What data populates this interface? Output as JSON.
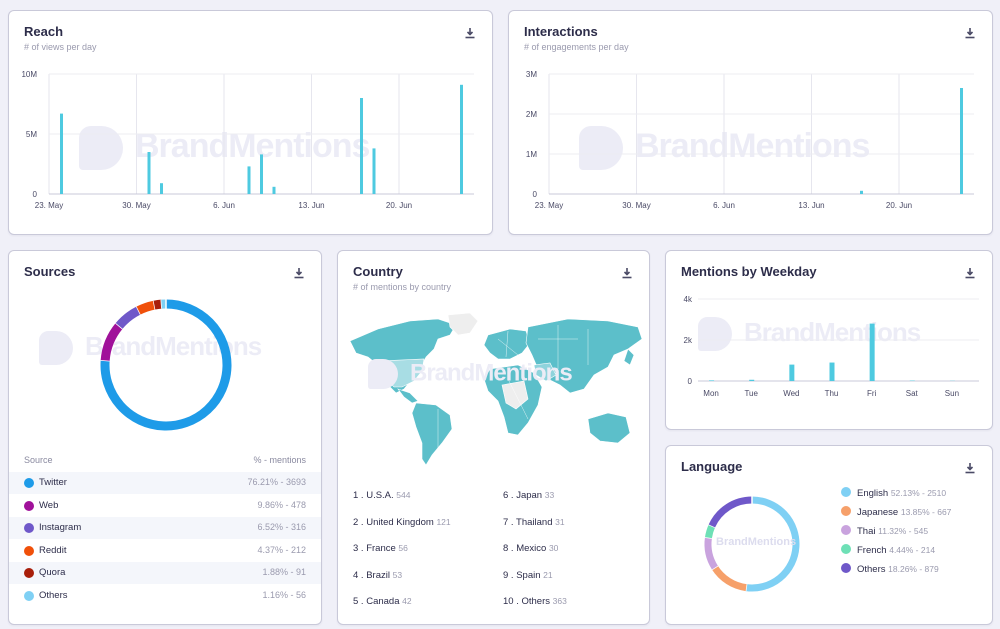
{
  "reach": {
    "title": "Reach",
    "subtitle": "# of views per day",
    "chart_data": {
      "type": "bar",
      "title": "Reach",
      "ylabel": "# of views per day",
      "ylim": [
        0,
        10000000
      ],
      "y_ticks": [
        "10M",
        "5M",
        "0"
      ],
      "x_ticks": [
        "23. May",
        "30. May",
        "6. Jun",
        "13. Jun",
        "20. Jun"
      ],
      "categories": [
        "24. May",
        "25. May",
        "26. May",
        "27. May",
        "28. May",
        "29. May",
        "30. May",
        "31. May",
        "1. Jun",
        "2. Jun",
        "3. Jun",
        "4. Jun",
        "5. Jun",
        "6. Jun",
        "7. Jun",
        "8. Jun",
        "9. Jun",
        "10. Jun",
        "11. Jun",
        "12. Jun",
        "13. Jun",
        "14. Jun",
        "15. Jun",
        "16. Jun",
        "17. Jun",
        "18. Jun",
        "19. Jun",
        "20. Jun",
        "21. Jun",
        "22. Jun",
        "23. Jun",
        "24. Jun",
        "25. Jun"
      ],
      "values": [
        6700000,
        0,
        0,
        0,
        0,
        0,
        0,
        3500000,
        900000,
        0,
        0,
        0,
        0,
        0,
        0,
        2300000,
        3300000,
        600000,
        0,
        0,
        0,
        0,
        0,
        0,
        8000000,
        3800000,
        0,
        0,
        0,
        0,
        0,
        0,
        9100000
      ]
    }
  },
  "interactions": {
    "title": "Interactions",
    "subtitle": "# of engagements per day",
    "chart_data": {
      "type": "bar",
      "title": "Interactions",
      "ylabel": "# of engagements per day",
      "ylim": [
        0,
        3000000
      ],
      "y_ticks": [
        "3M",
        "2M",
        "1M",
        "0"
      ],
      "x_ticks": [
        "23. May",
        "30. May",
        "6. Jun",
        "13. Jun",
        "20. Jun"
      ],
      "categories": [
        "24. May",
        "25. May",
        "26. May",
        "27. May",
        "28. May",
        "29. May",
        "30. May",
        "31. May",
        "1. Jun",
        "2. Jun",
        "3. Jun",
        "4. Jun",
        "5. Jun",
        "6. Jun",
        "7. Jun",
        "8. Jun",
        "9. Jun",
        "10. Jun",
        "11. Jun",
        "12. Jun",
        "13. Jun",
        "14. Jun",
        "15. Jun",
        "16. Jun",
        "17. Jun",
        "18. Jun",
        "19. Jun",
        "20. Jun",
        "21. Jun",
        "22. Jun",
        "23. Jun",
        "24. Jun",
        "25. Jun"
      ],
      "values": [
        0,
        0,
        0,
        0,
        0,
        0,
        0,
        0,
        0,
        0,
        0,
        0,
        0,
        0,
        0,
        0,
        0,
        0,
        0,
        0,
        0,
        0,
        0,
        0,
        80000,
        0,
        0,
        0,
        0,
        0,
        0,
        0,
        2650000
      ]
    }
  },
  "sources": {
    "title": "Sources",
    "col_source": "Source",
    "col_mentions": "% - mentions",
    "chart_data": {
      "type": "pie",
      "labels": [
        "Twitter",
        "Web",
        "Instagram",
        "Reddit",
        "Quora",
        "Others"
      ],
      "values": [
        76.21,
        9.86,
        6.52,
        4.37,
        1.88,
        1.16
      ],
      "colors": [
        "#1e9be8",
        "#a0119a",
        "#6f58c9",
        "#f0500a",
        "#a81e0a",
        "#7fd0f4"
      ]
    },
    "rows": [
      {
        "name": "Twitter",
        "value": "76.21% - 3693",
        "color": "#1e9be8"
      },
      {
        "name": "Web",
        "value": "9.86% - 478",
        "color": "#a0119a"
      },
      {
        "name": "Instagram",
        "value": "6.52% - 316",
        "color": "#6f58c9"
      },
      {
        "name": "Reddit",
        "value": "4.37% - 212",
        "color": "#f0500a"
      },
      {
        "name": "Quora",
        "value": "1.88% - 91",
        "color": "#a81e0a"
      },
      {
        "name": "Others",
        "value": "1.16% - 56",
        "color": "#7fd0f4"
      }
    ]
  },
  "country": {
    "title": "Country",
    "subtitle": "# of mentions by country",
    "list": [
      {
        "rank": "1 .",
        "name": "U.S.A.",
        "count": "544"
      },
      {
        "rank": "2 .",
        "name": "United Kingdom",
        "count": "121"
      },
      {
        "rank": "3 .",
        "name": "France",
        "count": "56"
      },
      {
        "rank": "4 .",
        "name": "Brazil",
        "count": "53"
      },
      {
        "rank": "5 .",
        "name": "Canada",
        "count": "42"
      },
      {
        "rank": "6 .",
        "name": "Japan",
        "count": "33"
      },
      {
        "rank": "7 .",
        "name": "Thailand",
        "count": "31"
      },
      {
        "rank": "8 .",
        "name": "Mexico",
        "count": "30"
      },
      {
        "rank": "9 .",
        "name": "Spain",
        "count": "21"
      },
      {
        "rank": "10 .",
        "name": "Others",
        "count": "363"
      }
    ]
  },
  "weekday": {
    "title": "Mentions by Weekday",
    "chart_data": {
      "type": "bar",
      "title": "Mentions by Weekday",
      "ylim": [
        0,
        4000
      ],
      "y_ticks": [
        "4k",
        "2k",
        "0"
      ],
      "categories": [
        "Mon",
        "Tue",
        "Wed",
        "Thu",
        "Fri",
        "Sat",
        "Sun"
      ],
      "values": [
        30,
        60,
        800,
        900,
        2800,
        20,
        10
      ]
    }
  },
  "language": {
    "title": "Language",
    "chart_data": {
      "type": "pie",
      "labels": [
        "English",
        "Japanese",
        "Thai",
        "French",
        "Others"
      ],
      "values": [
        52.13,
        13.85,
        11.32,
        4.44,
        18.26
      ],
      "colors": [
        "#7fd0f4",
        "#f6a06a",
        "#c9a3de",
        "#6ee0b6",
        "#6f58c9"
      ]
    },
    "rows": [
      {
        "name": "English",
        "value": "52.13% - 2510",
        "color": "#7fd0f4"
      },
      {
        "name": "Japanese",
        "value": "13.85% - 667",
        "color": "#f6a06a"
      },
      {
        "name": "Thai",
        "value": "11.32% - 545",
        "color": "#c9a3de"
      },
      {
        "name": "French",
        "value": "4.44% - 214",
        "color": "#6ee0b6"
      },
      {
        "name": "Others",
        "value": "18.26% - 879",
        "color": "#6f58c9"
      }
    ]
  },
  "watermark": {
    "text": "BrandMentions"
  },
  "colors": {
    "bar": "#4ecae0",
    "map_fill": "#5cbfca",
    "map_empty": "#eeeeee",
    "accent": "#1e9be8"
  }
}
